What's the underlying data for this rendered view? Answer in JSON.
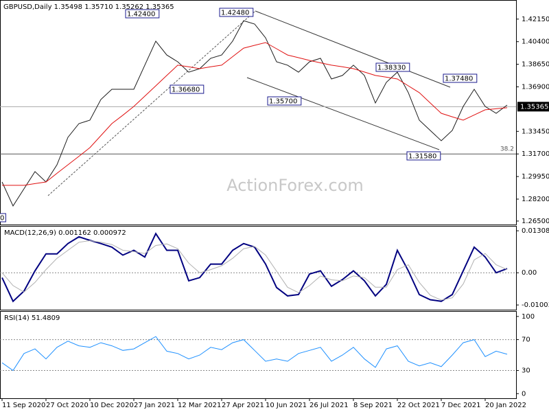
{
  "chart_data": [
    {
      "type": "line",
      "title": "GBPUSD,Daily  1.35498 1.35710 1.35262 1.35365",
      "watermark": "ActionForex.com",
      "x": [
        0,
        8,
        16,
        24,
        32,
        40,
        48,
        56,
        64,
        72,
        80,
        88,
        96,
        104,
        112,
        120,
        128,
        136,
        144,
        152,
        160,
        168,
        176,
        184,
        192,
        200,
        208,
        216,
        224,
        232,
        240,
        248,
        256,
        264,
        272,
        280,
        288,
        296,
        304,
        312,
        320,
        328,
        336,
        344,
        352,
        360,
        368
      ],
      "xlim": [
        0,
        374
      ],
      "ylim": [
        1.2623,
        1.4363
      ],
      "yticks": [
        {
          "value": 1.4215,
          "label": "1.42150"
        },
        {
          "value": 1.404,
          "label": "1.40400"
        },
        {
          "value": 1.3865,
          "label": "1.38650"
        },
        {
          "value": 1.369,
          "label": "1.36900"
        },
        {
          "value": 1.3345,
          "label": "1.33450"
        },
        {
          "value": 1.317,
          "label": "1.31700"
        },
        {
          "value": 1.2995,
          "label": "1.29950"
        },
        {
          "value": 1.282,
          "label": "1.28200"
        },
        {
          "value": 1.265,
          "label": "1.26500"
        }
      ],
      "last_price": {
        "value": 1.35365,
        "label": "1.35365"
      },
      "levels": [
        {
          "value": 1.317,
          "label": "38.2"
        }
      ],
      "annotations": [
        "1.42400",
        "1.42480",
        "1.36680",
        "1.35700",
        "1.38330",
        "1.37480",
        "1.31580",
        "0"
      ],
      "series": [
        {
          "color": "#1a1a1a",
          "values": [
            1.2953,
            1.2767,
            1.29,
            1.3033,
            1.2953,
            1.3086,
            1.3299,
            1.3405,
            1.3432,
            1.3592,
            1.3671,
            1.3671,
            1.3671,
            1.3858,
            1.4044,
            1.3937,
            1.3884,
            1.3804,
            1.3831,
            1.3911,
            1.3937,
            1.4044,
            1.4203,
            1.4177,
            1.407,
            1.3884,
            1.3858,
            1.3804,
            1.3884,
            1.3911,
            1.3751,
            1.3778,
            1.3858,
            1.3778,
            1.3565,
            1.3725,
            1.3804,
            1.3645,
            1.3432,
            1.3352,
            1.3272,
            1.3352,
            1.3538,
            1.3671,
            1.3538,
            1.3485,
            1.3549
          ]
        },
        {
          "color": "#e01010",
          "values": [
            1.2927,
            1.2927,
            1.2927,
            1.294,
            1.2953,
            1.302,
            1.3086,
            1.3152,
            1.3219,
            1.3312,
            1.3405,
            1.347,
            1.3538,
            1.3618,
            1.3698,
            1.3778,
            1.3858,
            1.3845,
            1.3831,
            1.3845,
            1.3858,
            1.3924,
            1.399,
            1.4012,
            1.4033,
            1.3985,
            1.3937,
            1.3916,
            1.3895,
            1.3876,
            1.3858,
            1.3845,
            1.3831,
            1.3805,
            1.3778,
            1.3765,
            1.3751,
            1.3698,
            1.3645,
            1.3565,
            1.3485,
            1.3458,
            1.3432,
            1.3472,
            1.3512,
            1.352,
            1.3528
          ]
        }
      ]
    },
    {
      "type": "line",
      "title": "MACD(12,26,9) 0.001162 0.000972",
      "x": [
        0,
        8,
        16,
        24,
        32,
        40,
        48,
        56,
        64,
        72,
        80,
        88,
        96,
        104,
        112,
        120,
        128,
        136,
        144,
        152,
        160,
        168,
        176,
        184,
        192,
        200,
        208,
        216,
        224,
        232,
        240,
        248,
        256,
        264,
        272,
        280,
        288,
        296,
        304,
        312,
        320,
        328,
        336,
        344,
        352,
        360,
        368
      ],
      "xlim": [
        0,
        374
      ],
      "ylim": [
        -0.0115,
        0.0146
      ],
      "yticks": [
        {
          "value": 0.013083,
          "label": "0.013083"
        },
        {
          "value": 0,
          "label": "0.00"
        },
        {
          "value": -0.01003,
          "label": "-0.01003"
        }
      ],
      "levels": [
        0
      ],
      "series": [
        {
          "color": "#000080",
          "values": [
            -0.0015,
            -0.0089,
            -0.0057,
            0.0006,
            0.0059,
            0.0059,
            0.0091,
            0.0112,
            0.0101,
            0.0091,
            0.008,
            0.0055,
            0.007,
            0.0049,
            0.0122,
            0.007,
            0.007,
            -0.0025,
            -0.0015,
            0.0027,
            0.0027,
            0.007,
            0.0091,
            0.008,
            0.0027,
            -0.0046,
            -0.0072,
            -0.0068,
            -0.0004,
            0.0006,
            -0.0042,
            -0.0021,
            0.0006,
            -0.0025,
            -0.0072,
            -0.0036,
            0.007,
            0.0006,
            -0.0068,
            -0.0084,
            -0.0089,
            -0.0068,
            0.0006,
            0.008,
            0.0049,
            0,
            0.0013
          ]
        },
        {
          "color": "#b0b0b0",
          "values": [
            0,
            -0.004,
            -0.006,
            -0.003,
            0.001,
            0.0045,
            0.007,
            0.0095,
            0.01,
            0.0095,
            0.0088,
            0.007,
            0.0066,
            0.006,
            0.0085,
            0.009,
            0.0075,
            0.003,
            0,
            0.001,
            0.0022,
            0.0045,
            0.0075,
            0.0082,
            0.0055,
            0.0005,
            -0.0045,
            -0.0062,
            -0.004,
            -0.001,
            -0.0022,
            -0.0025,
            -0.001,
            -0.0015,
            -0.0045,
            -0.0045,
            0.001,
            0.0025,
            -0.003,
            -0.007,
            -0.0085,
            -0.0078,
            -0.0035,
            0.004,
            0.006,
            0.0025,
            0.001
          ]
        }
      ]
    },
    {
      "type": "line",
      "title": "RSI(14) 51.4809",
      "x": [
        0,
        8,
        16,
        24,
        32,
        40,
        48,
        56,
        64,
        72,
        80,
        88,
        96,
        104,
        112,
        120,
        128,
        136,
        144,
        152,
        160,
        168,
        176,
        184,
        192,
        200,
        208,
        216,
        224,
        232,
        240,
        248,
        256,
        264,
        272,
        280,
        288,
        296,
        304,
        312,
        320,
        328,
        336,
        344,
        352,
        360,
        368
      ],
      "xlim": [
        0,
        374
      ],
      "ylim": [
        -6,
        107
      ],
      "yticks": [
        100,
        70,
        30,
        0
      ],
      "levels": [
        70,
        30
      ],
      "xticks": [
        {
          "value": 0,
          "label": "11 Sep 2020"
        },
        {
          "value": 32,
          "label": "27 Oct 2020"
        },
        {
          "value": 64,
          "label": "10 Dec 2020"
        },
        {
          "value": 96,
          "label": "27 Jan 2021"
        },
        {
          "value": 128,
          "label": "12 Mar 2021"
        },
        {
          "value": 160,
          "label": "27 Apr 2021"
        },
        {
          "value": 192,
          "label": "10 Jun 2021"
        },
        {
          "value": 224,
          "label": "26 Jul 2021"
        },
        {
          "value": 256,
          "label": "8 Sep 2021"
        },
        {
          "value": 288,
          "label": "22 Oct 2021"
        },
        {
          "value": 320,
          "label": "7 Dec 2021"
        },
        {
          "value": 352,
          "label": "20 Jan 2022"
        }
      ],
      "series": [
        {
          "color": "#1e90ff",
          "values": [
            40,
            30,
            52,
            58,
            45,
            60,
            68,
            62,
            60,
            66,
            62,
            56,
            58,
            66,
            74,
            55,
            52,
            45,
            50,
            60,
            57,
            66,
            70,
            56,
            42,
            45,
            42,
            52,
            56,
            60,
            42,
            50,
            60,
            45,
            34,
            58,
            62,
            42,
            36,
            40,
            35,
            50,
            66,
            70,
            48,
            55,
            51
          ]
        }
      ]
    }
  ]
}
